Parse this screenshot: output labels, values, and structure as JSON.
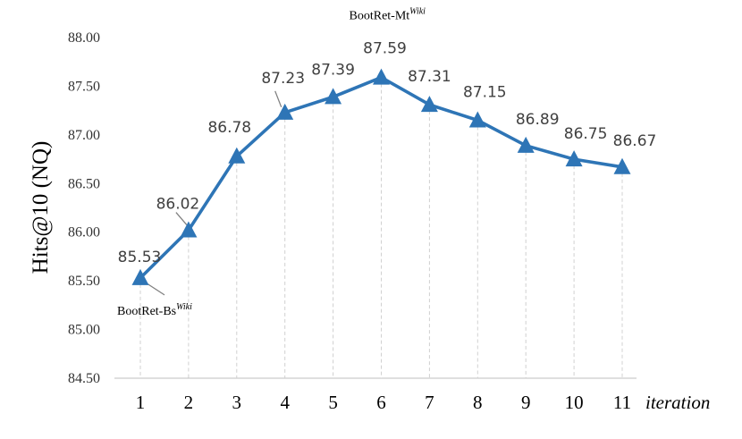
{
  "chart_data": {
    "type": "line",
    "categories": [
      "1",
      "2",
      "3",
      "4",
      "5",
      "6",
      "7",
      "8",
      "9",
      "10",
      "11"
    ],
    "series": [
      {
        "values": [
          85.53,
          86.02,
          86.78,
          87.23,
          87.39,
          87.59,
          87.31,
          87.15,
          86.89,
          86.75,
          86.67
        ]
      }
    ],
    "data_labels": [
      "85.53",
      "86.02",
      "86.78",
      "87.23",
      "87.39",
      "87.59",
      "87.31",
      "87.15",
      "86.89",
      "86.75",
      "86.67"
    ],
    "y_ticks": [
      "84.50",
      "85.00",
      "85.50",
      "86.00",
      "86.50",
      "87.00",
      "87.50",
      "88.00"
    ],
    "ylim": [
      84.5,
      88.0
    ],
    "xlabel": "iteration",
    "ylabel": "Hits@10 (NQ)",
    "annotations": [
      {
        "text": "BootRet-Bs",
        "sup": "Wiki",
        "point_index": 0
      },
      {
        "text": "BootRet-Mt",
        "sup": "Wiki",
        "point_index": 5
      }
    ],
    "colors": {
      "line": "#2e75b6",
      "marker": "#2e75b6",
      "gridline": "#d0d0d0",
      "axis": "#bfbfbf"
    },
    "marker": "triangle",
    "grid": "vertical dashed drop lines"
  }
}
